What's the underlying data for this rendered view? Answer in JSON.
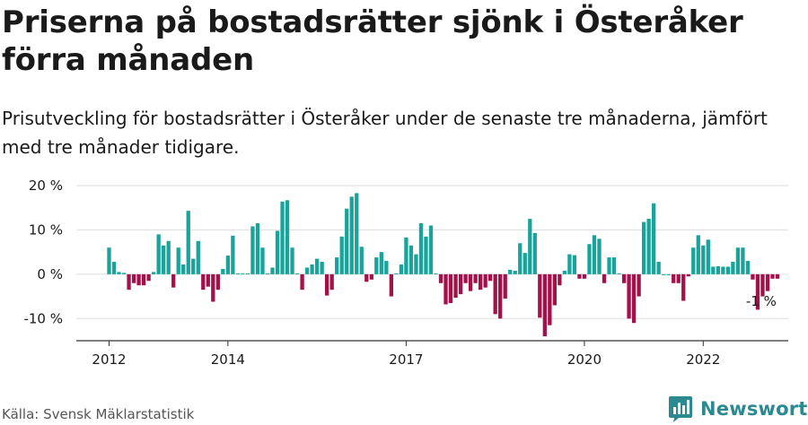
{
  "title": "Priserna på bostadsrätter sjönk i Österåker förra månaden",
  "subtitle": "Prisutveckling för bostadsrätter i Österåker under de senaste tre månaderna, jämfört med tre månader tidigare.",
  "source": "Källa: Svensk Mäklarstatistik",
  "brand": {
    "name": "Newsworthy",
    "icon": "newsworthy-logo-icon",
    "color": "#2a8a8f"
  },
  "colors": {
    "positive": "#1aa39a",
    "negative": "#a3114b",
    "grid": "#dddddd",
    "axis": "#333333"
  },
  "chart_data": {
    "type": "bar",
    "title": "",
    "xlabel": "",
    "ylabel": "",
    "unit": "%",
    "ylim": [
      -15,
      20
    ],
    "yticks": [
      -10,
      0,
      10,
      20
    ],
    "ytick_labels": [
      "-10 %",
      "0 %",
      "10 %",
      "20 %"
    ],
    "x_start": "2012-01",
    "xticks": [
      {
        "label": "2012",
        "month": "2012-01"
      },
      {
        "label": "2014",
        "month": "2014-01"
      },
      {
        "label": "2017",
        "month": "2017-01"
      },
      {
        "label": "2020",
        "month": "2020-01"
      },
      {
        "label": "2022",
        "month": "2022-01"
      }
    ],
    "grid": true,
    "annotation": {
      "text": "-1 %",
      "month": "2022-10",
      "value": -1
    },
    "values": [
      6.0,
      2.8,
      0.5,
      0.3,
      -3.5,
      -2.0,
      -2.5,
      -2.5,
      -1.5,
      0.5,
      9.0,
      6.5,
      7.5,
      -3.0,
      6.0,
      2.2,
      14.3,
      3.5,
      7.5,
      -3.5,
      -2.8,
      -6.2,
      -3.5,
      1.2,
      4.2,
      8.7,
      0.2,
      0.2,
      0.2,
      10.8,
      11.5,
      6.0,
      0.2,
      1.5,
      9.8,
      16.4,
      16.7,
      6.0,
      0.2,
      -3.5,
      1.5,
      2.2,
      3.5,
      2.8,
      -4.8,
      -3.5,
      3.8,
      8.5,
      14.8,
      17.5,
      18.3,
      6.2,
      -1.7,
      -1.2,
      3.8,
      5.0,
      3.0,
      -5.0,
      0.2,
      2.2,
      8.3,
      6.5,
      4.5,
      11.5,
      8.5,
      11.0,
      0.2,
      -2.0,
      -6.8,
      -6.5,
      -5.3,
      -4.5,
      -2.0,
      -3.8,
      -2.0,
      -3.5,
      -3.0,
      -1.5,
      -9.0,
      -10.0,
      -5.5,
      1.0,
      0.8,
      7.0,
      4.8,
      12.5,
      9.3,
      -9.8,
      -14.0,
      -11.5,
      -7.0,
      -2.5,
      0.8,
      4.5,
      4.3,
      -1.0,
      -1.0,
      6.8,
      8.8,
      8.0,
      -2.0,
      3.8,
      3.8,
      0.2,
      -2.0,
      -10.0,
      -11.0,
      -5.0,
      11.8,
      12.5,
      16.0,
      2.8,
      0.0,
      0.0,
      -2.0,
      -2.0,
      -6.0,
      -0.5,
      6.0,
      8.8,
      6.5,
      7.8,
      1.7,
      1.8,
      1.7,
      1.7,
      2.8,
      6.0,
      6.0,
      3.0,
      -1.2,
      -8.0,
      -5.0,
      -3.8,
      -1.0,
      -1.0
    ]
  }
}
